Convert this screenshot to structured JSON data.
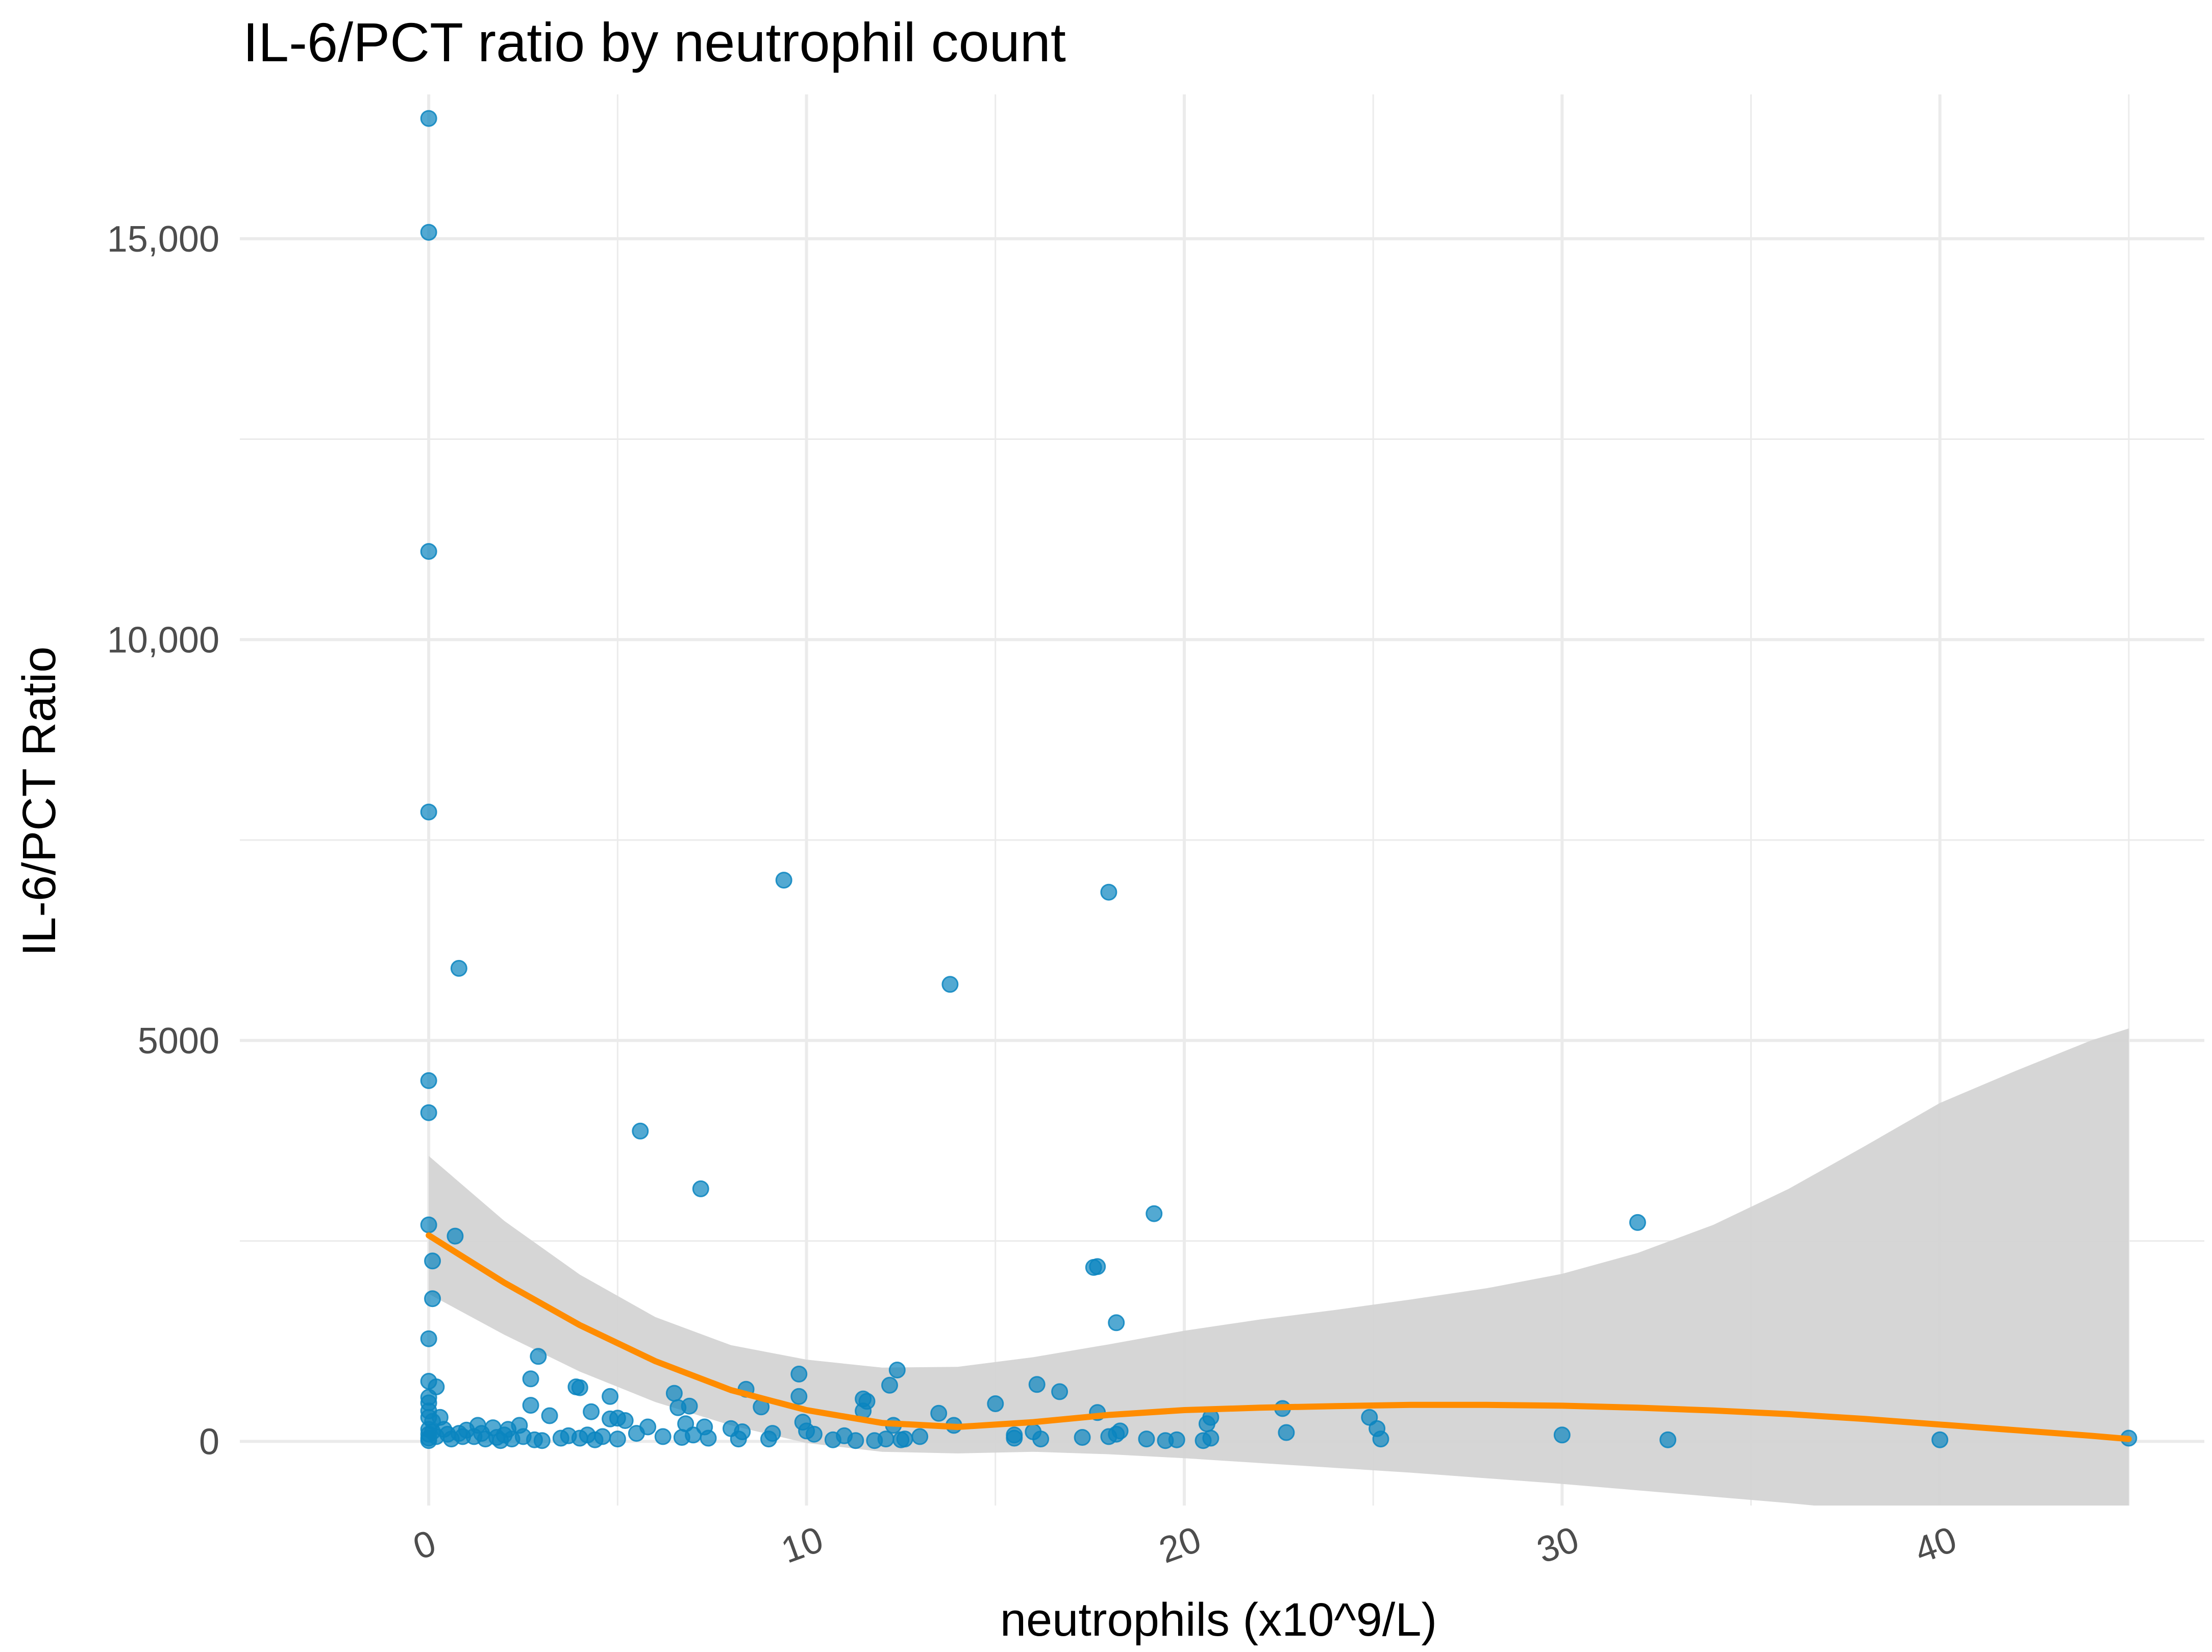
{
  "chart_data": {
    "type": "scatter",
    "title": "IL-6/PCT ratio by neutrophil count",
    "xlabel": "neutrophils (x10^9/L)",
    "ylabel": "IL-6/PCT Ratio",
    "xlim": [
      -5,
      47
    ],
    "ylim": [
      -800,
      16800
    ],
    "x_ticks": [
      0,
      10,
      20,
      30,
      40
    ],
    "x_tick_labels": [
      "0",
      "10",
      "20",
      "30",
      "40"
    ],
    "y_ticks": [
      0,
      5000,
      10000,
      15000
    ],
    "y_tick_labels": [
      "0",
      "5000",
      "10,000",
      "15,000"
    ],
    "grid": true,
    "legend": "none",
    "colors": {
      "points": "#0a85bf",
      "smooth_line": "#ff8c00",
      "ribbon": "#d4d4d4",
      "grid": "#ebebeb"
    },
    "points": [
      {
        "x": 0.0,
        "y": 16500
      },
      {
        "x": 0.0,
        "y": 15080
      },
      {
        "x": 0.0,
        "y": 11100
      },
      {
        "x": 0.0,
        "y": 7850
      },
      {
        "x": 0.0,
        "y": 4500
      },
      {
        "x": 0.0,
        "y": 4100
      },
      {
        "x": 0.0,
        "y": 2700
      },
      {
        "x": 0.1,
        "y": 2250
      },
      {
        "x": 0.1,
        "y": 1780
      },
      {
        "x": 0.0,
        "y": 1280
      },
      {
        "x": 0.0,
        "y": 750
      },
      {
        "x": 0.2,
        "y": 680
      },
      {
        "x": 0.0,
        "y": 550
      },
      {
        "x": 0.0,
        "y": 480
      },
      {
        "x": 0.0,
        "y": 380
      },
      {
        "x": 0.0,
        "y": 300
      },
      {
        "x": 0.1,
        "y": 250
      },
      {
        "x": 0.3,
        "y": 300
      },
      {
        "x": 0.0,
        "y": 150
      },
      {
        "x": 0.0,
        "y": 90
      },
      {
        "x": 0.0,
        "y": 40
      },
      {
        "x": 0.0,
        "y": 10
      },
      {
        "x": 0.1,
        "y": 120
      },
      {
        "x": 0.2,
        "y": 60
      },
      {
        "x": 0.4,
        "y": 150
      },
      {
        "x": 0.5,
        "y": 90
      },
      {
        "x": 0.6,
        "y": 30
      },
      {
        "x": 0.7,
        "y": 2560
      },
      {
        "x": 0.8,
        "y": 5900
      },
      {
        "x": 0.8,
        "y": 100
      },
      {
        "x": 0.9,
        "y": 60
      },
      {
        "x": 1.0,
        "y": 140
      },
      {
        "x": 1.2,
        "y": 60
      },
      {
        "x": 1.3,
        "y": 200
      },
      {
        "x": 1.4,
        "y": 100
      },
      {
        "x": 1.5,
        "y": 30
      },
      {
        "x": 1.7,
        "y": 170
      },
      {
        "x": 1.8,
        "y": 50
      },
      {
        "x": 1.9,
        "y": 10
      },
      {
        "x": 2.0,
        "y": 80
      },
      {
        "x": 2.1,
        "y": 150
      },
      {
        "x": 2.2,
        "y": 30
      },
      {
        "x": 2.4,
        "y": 200
      },
      {
        "x": 2.5,
        "y": 60
      },
      {
        "x": 2.7,
        "y": 780
      },
      {
        "x": 2.7,
        "y": 450
      },
      {
        "x": 2.8,
        "y": 20
      },
      {
        "x": 2.9,
        "y": 1060
      },
      {
        "x": 3.0,
        "y": 10
      },
      {
        "x": 3.2,
        "y": 320
      },
      {
        "x": 3.5,
        "y": 40
      },
      {
        "x": 3.7,
        "y": 70
      },
      {
        "x": 3.9,
        "y": 680
      },
      {
        "x": 4.0,
        "y": 670
      },
      {
        "x": 4.0,
        "y": 40
      },
      {
        "x": 4.2,
        "y": 80
      },
      {
        "x": 4.3,
        "y": 370
      },
      {
        "x": 4.4,
        "y": 20
      },
      {
        "x": 4.6,
        "y": 60
      },
      {
        "x": 4.8,
        "y": 560
      },
      {
        "x": 4.8,
        "y": 280
      },
      {
        "x": 5.0,
        "y": 290
      },
      {
        "x": 5.0,
        "y": 30
      },
      {
        "x": 5.2,
        "y": 260
      },
      {
        "x": 5.5,
        "y": 100
      },
      {
        "x": 5.6,
        "y": 3870
      },
      {
        "x": 5.8,
        "y": 180
      },
      {
        "x": 6.2,
        "y": 60
      },
      {
        "x": 6.5,
        "y": 600
      },
      {
        "x": 6.6,
        "y": 420
      },
      {
        "x": 6.7,
        "y": 50
      },
      {
        "x": 6.8,
        "y": 220
      },
      {
        "x": 6.9,
        "y": 440
      },
      {
        "x": 7.0,
        "y": 80
      },
      {
        "x": 7.2,
        "y": 3150
      },
      {
        "x": 7.3,
        "y": 180
      },
      {
        "x": 7.4,
        "y": 40
      },
      {
        "x": 8.0,
        "y": 160
      },
      {
        "x": 8.2,
        "y": 30
      },
      {
        "x": 8.3,
        "y": 120
      },
      {
        "x": 8.4,
        "y": 650
      },
      {
        "x": 8.8,
        "y": 430
      },
      {
        "x": 9.0,
        "y": 30
      },
      {
        "x": 9.1,
        "y": 100
      },
      {
        "x": 9.4,
        "y": 7000
      },
      {
        "x": 9.8,
        "y": 840
      },
      {
        "x": 9.8,
        "y": 560
      },
      {
        "x": 9.9,
        "y": 240
      },
      {
        "x": 10.0,
        "y": 130
      },
      {
        "x": 10.2,
        "y": 90
      },
      {
        "x": 10.7,
        "y": 20
      },
      {
        "x": 11.0,
        "y": 70
      },
      {
        "x": 11.3,
        "y": 10
      },
      {
        "x": 11.5,
        "y": 530
      },
      {
        "x": 11.6,
        "y": 500
      },
      {
        "x": 11.5,
        "y": 380
      },
      {
        "x": 11.8,
        "y": 10
      },
      {
        "x": 12.1,
        "y": 30
      },
      {
        "x": 12.2,
        "y": 700
      },
      {
        "x": 12.3,
        "y": 200
      },
      {
        "x": 12.4,
        "y": 890
      },
      {
        "x": 12.5,
        "y": 20
      },
      {
        "x": 12.6,
        "y": 30
      },
      {
        "x": 13.0,
        "y": 60
      },
      {
        "x": 13.5,
        "y": 350
      },
      {
        "x": 13.8,
        "y": 5700
      },
      {
        "x": 13.9,
        "y": 200
      },
      {
        "x": 15.0,
        "y": 470
      },
      {
        "x": 15.5,
        "y": 80
      },
      {
        "x": 15.5,
        "y": 40
      },
      {
        "x": 16.0,
        "y": 120
      },
      {
        "x": 16.1,
        "y": 710
      },
      {
        "x": 16.2,
        "y": 30
      },
      {
        "x": 16.7,
        "y": 620
      },
      {
        "x": 17.3,
        "y": 50
      },
      {
        "x": 17.6,
        "y": 2170
      },
      {
        "x": 17.7,
        "y": 2180
      },
      {
        "x": 17.7,
        "y": 360
      },
      {
        "x": 18.0,
        "y": 6850
      },
      {
        "x": 18.0,
        "y": 60
      },
      {
        "x": 18.2,
        "y": 1480
      },
      {
        "x": 18.2,
        "y": 90
      },
      {
        "x": 18.3,
        "y": 130
      },
      {
        "x": 19.0,
        "y": 30
      },
      {
        "x": 19.2,
        "y": 2840
      },
      {
        "x": 19.5,
        "y": 10
      },
      {
        "x": 19.8,
        "y": 20
      },
      {
        "x": 20.5,
        "y": 10
      },
      {
        "x": 20.6,
        "y": 220
      },
      {
        "x": 20.7,
        "y": 300
      },
      {
        "x": 20.7,
        "y": 40
      },
      {
        "x": 22.6,
        "y": 410
      },
      {
        "x": 22.7,
        "y": 110
      },
      {
        "x": 24.9,
        "y": 300
      },
      {
        "x": 25.1,
        "y": 160
      },
      {
        "x": 25.2,
        "y": 30
      },
      {
        "x": 30.0,
        "y": 80
      },
      {
        "x": 32.0,
        "y": 2730
      },
      {
        "x": 32.8,
        "y": 20
      },
      {
        "x": 40.0,
        "y": 20
      },
      {
        "x": 45.0,
        "y": 40
      }
    ],
    "smooth": {
      "x": [
        0,
        2,
        4,
        6,
        8,
        10,
        12,
        14,
        16,
        18,
        20,
        22,
        24,
        26,
        28,
        30,
        32,
        34,
        36,
        38,
        40,
        42,
        44,
        45
      ],
      "y": [
        2570,
        1980,
        1450,
        1000,
        640,
        390,
        230,
        180,
        240,
        330,
        390,
        420,
        440,
        455,
        455,
        445,
        420,
        385,
        340,
        280,
        210,
        140,
        70,
        30
      ],
      "ymin": [
        1840,
        1330,
        870,
        490,
        200,
        -20,
        -130,
        -150,
        -130,
        -160,
        -210,
        -270,
        -330,
        -390,
        -460,
        -530,
        -610,
        -690,
        -770,
        -860,
        -960,
        -1060,
        -1160,
        -1230
      ],
      "ymax": [
        3560,
        2750,
        2080,
        1550,
        1200,
        1020,
        920,
        930,
        1050,
        1210,
        1380,
        1520,
        1640,
        1770,
        1910,
        2090,
        2350,
        2700,
        3150,
        3680,
        4220,
        4620,
        5000,
        5150
      ]
    }
  }
}
